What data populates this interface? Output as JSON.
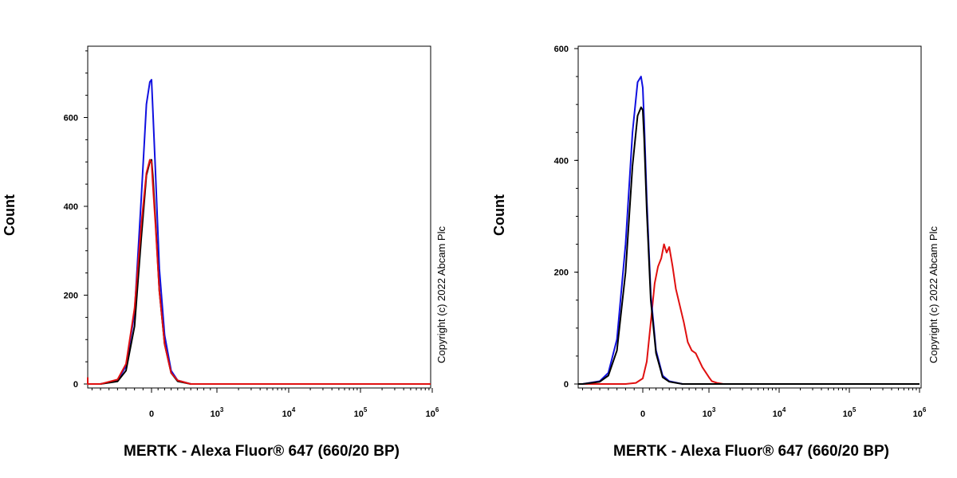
{
  "copyright": "Copyright (c) 2022 Abcam Plc",
  "colors": {
    "blue": "#1010e0",
    "red": "#e01010",
    "black": "#000000"
  },
  "chart_data": [
    {
      "type": "line",
      "title": "",
      "xlabel": "MERTK - Alexa Fluor® 647 (660/20 BP)",
      "ylabel": "Count",
      "x_scale": "biexponential",
      "ylim": [
        0,
        760
      ],
      "yticks": [
        0,
        200,
        400,
        600
      ],
      "xticks": [
        {
          "base": "0",
          "exp": "",
          "value": 0
        },
        {
          "base": "10",
          "exp": "3",
          "value": 1000
        },
        {
          "base": "10",
          "exp": "4",
          "value": 10000
        },
        {
          "base": "10",
          "exp": "5",
          "value": 100000
        },
        {
          "base": "10",
          "exp": "6",
          "value": 1000000
        }
      ],
      "grid": false,
      "series": [
        {
          "color": "blue",
          "x": [
            -2000,
            -600,
            -400,
            -300,
            -200,
            -120,
            -60,
            -20,
            0,
            20,
            60,
            120,
            200,
            300,
            400,
            600,
            2000,
            1000000
          ],
          "y": [
            0,
            0,
            8,
            40,
            160,
            420,
            630,
            680,
            685,
            620,
            480,
            260,
            110,
            30,
            8,
            0,
            0,
            0
          ]
        },
        {
          "color": "black",
          "x": [
            -2000,
            -600,
            -400,
            -300,
            -200,
            -120,
            -60,
            -20,
            0,
            20,
            60,
            120,
            200,
            300,
            400,
            600,
            2000,
            1000000
          ],
          "y": [
            0,
            0,
            6,
            30,
            130,
            330,
            470,
            500,
            505,
            470,
            370,
            210,
            90,
            25,
            6,
            0,
            0,
            0
          ]
        },
        {
          "color": "red",
          "x": [
            -2500,
            -2300,
            -2100,
            -1800,
            -1500,
            -600,
            -400,
            -300,
            -200,
            -120,
            -60,
            -20,
            0,
            20,
            60,
            120,
            200,
            300,
            400,
            600,
            2000,
            1000000
          ],
          "y": [
            15,
            10,
            5,
            2,
            0,
            0,
            10,
            45,
            170,
            360,
            475,
            505,
            500,
            450,
            360,
            210,
            90,
            25,
            8,
            0,
            0,
            0
          ]
        }
      ]
    },
    {
      "type": "line",
      "title": "",
      "xlabel": "MERTK - Alexa Fluor® 647 (660/20 BP)",
      "ylabel": "Count",
      "x_scale": "biexponential",
      "ylim": [
        0,
        600
      ],
      "yticks": [
        0,
        200,
        400,
        600
      ],
      "xticks": [
        {
          "base": "0",
          "exp": "",
          "value": 0
        },
        {
          "base": "10",
          "exp": "3",
          "value": 1000
        },
        {
          "base": "10",
          "exp": "4",
          "value": 10000
        },
        {
          "base": "10",
          "exp": "5",
          "value": 100000
        },
        {
          "base": "10",
          "exp": "6",
          "value": 1000000
        }
      ],
      "grid": false,
      "series": [
        {
          "color": "red",
          "x": [
            -2500,
            -200,
            -80,
            0,
            60,
            120,
            180,
            230,
            280,
            320,
            360,
            400,
            450,
            500,
            560,
            620,
            680,
            740,
            800,
            900,
            1000,
            1100,
            1300,
            1600,
            1000000
          ],
          "y": [
            0,
            0,
            2,
            10,
            40,
            110,
            180,
            210,
            225,
            250,
            235,
            245,
            210,
            170,
            140,
            110,
            75,
            60,
            55,
            30,
            12,
            5,
            2,
            0,
            0
          ]
        },
        {
          "color": "blue",
          "x": [
            -2500,
            -700,
            -500,
            -400,
            -300,
            -200,
            -120,
            -60,
            -20,
            0,
            20,
            60,
            120,
            200,
            300,
            400,
            600,
            2000,
            1000000
          ],
          "y": [
            0,
            0,
            5,
            20,
            80,
            250,
            450,
            540,
            550,
            530,
            470,
            330,
            160,
            60,
            15,
            5,
            0,
            0,
            0
          ]
        },
        {
          "color": "black",
          "x": [
            -2500,
            -700,
            -500,
            -400,
            -300,
            -200,
            -120,
            -60,
            -20,
            0,
            20,
            60,
            120,
            200,
            300,
            400,
            600,
            2000,
            1000000
          ],
          "y": [
            0,
            0,
            4,
            15,
            60,
            200,
            390,
            480,
            495,
            490,
            440,
            310,
            150,
            55,
            12,
            4,
            0,
            0,
            0
          ]
        }
      ]
    }
  ]
}
